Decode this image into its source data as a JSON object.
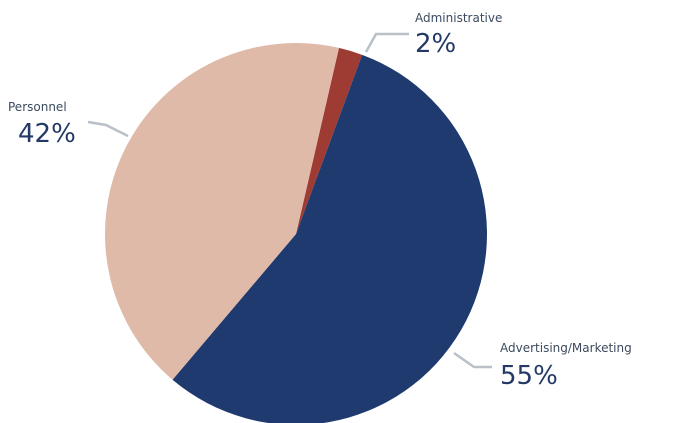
{
  "chart_data": {
    "type": "pie",
    "slices": [
      {
        "label": "Administrative",
        "value": 2,
        "display": "2%",
        "color": "#9e3b33"
      },
      {
        "label": "Advertising/Marketing",
        "value": 55,
        "display": "55%",
        "color": "#1f3a6e"
      },
      {
        "label": "Personnel",
        "value": 42,
        "display": "42%",
        "color": "#e0baa8"
      }
    ],
    "legend": "none"
  }
}
